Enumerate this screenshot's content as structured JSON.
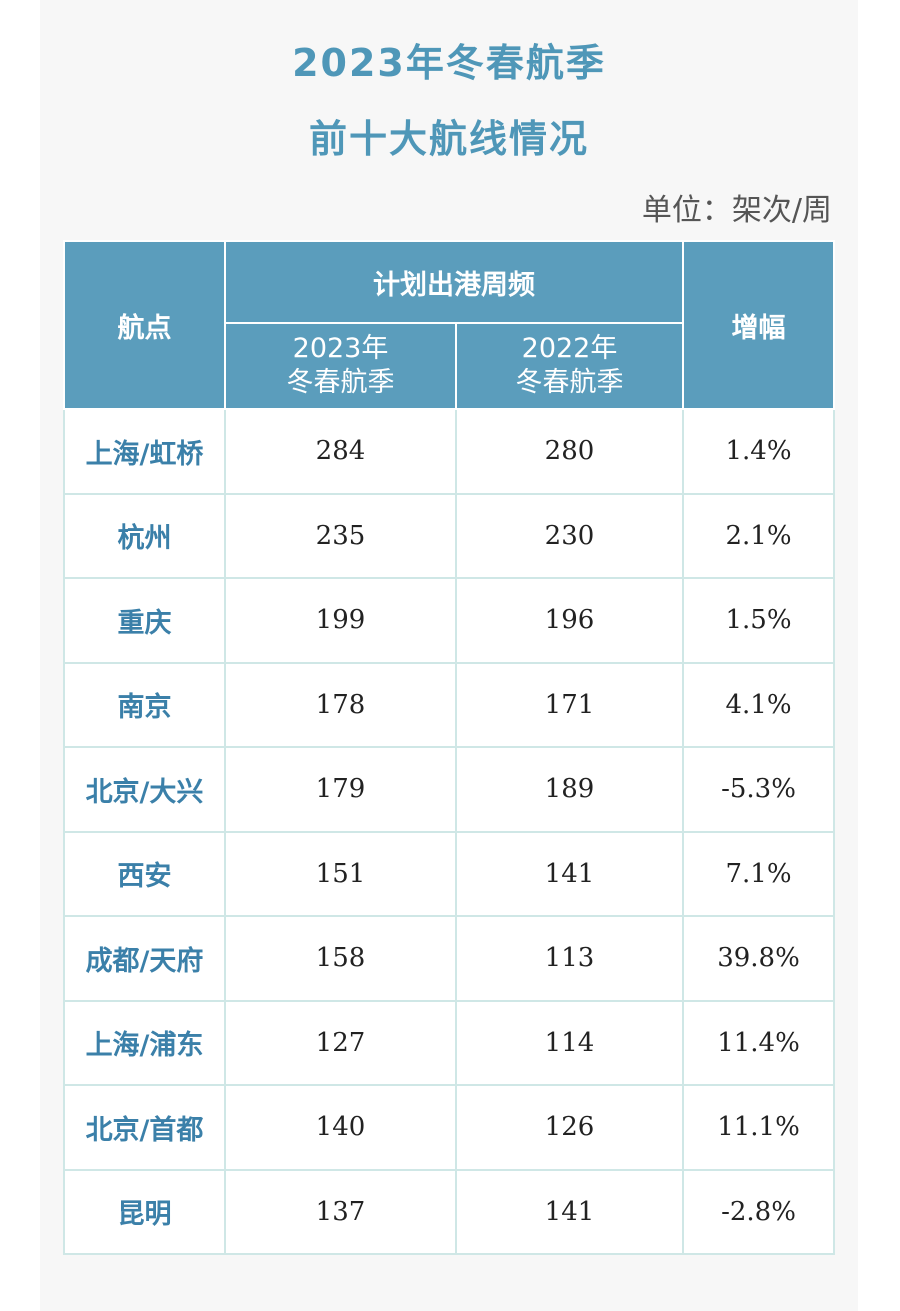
{
  "header": {
    "title_lines": [
      "2023年冬春航季",
      "前十大航线情况"
    ],
    "unit": "单位：架次/周"
  },
  "table": {
    "head": {
      "route": "航点",
      "group": "计划出港周频",
      "change": "增幅",
      "sub_columns": [
        [
          "2023年",
          "冬春航季"
        ],
        [
          "2022年",
          "冬春航季"
        ]
      ]
    },
    "rows": [
      [
        "上海/虹桥",
        "284",
        "280",
        "1.4%"
      ],
      [
        "杭州",
        "235",
        "230",
        "2.1%"
      ],
      [
        "重庆",
        "199",
        "196",
        "1.5%"
      ],
      [
        "南京",
        "178",
        "171",
        "4.1%"
      ],
      [
        "北京/大兴",
        "179",
        "189",
        "-5.3%"
      ],
      [
        "西安",
        "151",
        "141",
        "7.1%"
      ],
      [
        "成都/天府",
        "158",
        "113",
        "39.8%"
      ],
      [
        "上海/浦东",
        "127",
        "114",
        "11.4%"
      ],
      [
        "北京/首都",
        "140",
        "126",
        "11.1%"
      ],
      [
        "昆明",
        "137",
        "141",
        "-2.8%"
      ]
    ]
  }
}
